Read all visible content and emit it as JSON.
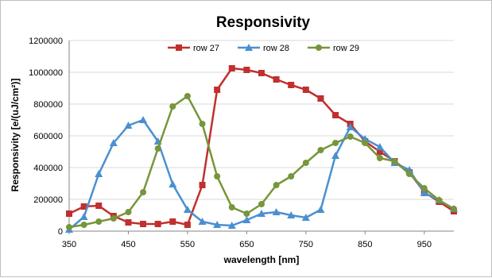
{
  "chart_data": {
    "type": "line",
    "title": "Responsivity",
    "xlabel": "wavelength [nm]",
    "ylabel": "Responsivity [e/(uJ/cm²)]",
    "xlim": [
      350,
      1000
    ],
    "ylim": [
      0,
      1200000
    ],
    "x_ticks": [
      350,
      450,
      550,
      650,
      750,
      850,
      950
    ],
    "y_ticks": [
      0,
      200000,
      400000,
      600000,
      800000,
      1000000,
      1200000
    ],
    "grid": true,
    "legend_position": "top",
    "x": [
      350,
      375,
      400,
      425,
      450,
      475,
      500,
      525,
      550,
      575,
      600,
      625,
      650,
      675,
      700,
      725,
      750,
      775,
      800,
      825,
      850,
      875,
      900,
      925,
      950,
      975,
      1000
    ],
    "series": [
      {
        "name": "row 27",
        "color": "#c0302e",
        "marker": "square",
        "values": [
          110000,
          155000,
          160000,
          95000,
          55000,
          45000,
          45000,
          60000,
          40000,
          290000,
          890000,
          1025000,
          1015000,
          995000,
          955000,
          920000,
          890000,
          835000,
          730000,
          675000,
          565000,
          500000,
          440000,
          370000,
          245000,
          185000,
          125000
        ]
      },
      {
        "name": "row 28",
        "color": "#4a90d0",
        "marker": "triangle",
        "values": [
          10000,
          90000,
          360000,
          555000,
          665000,
          700000,
          565000,
          295000,
          135000,
          60000,
          40000,
          35000,
          70000,
          110000,
          120000,
          100000,
          85000,
          135000,
          475000,
          655000,
          580000,
          530000,
          430000,
          385000,
          240000,
          195000,
          140000
        ]
      },
      {
        "name": "row 29",
        "color": "#76963b",
        "marker": "circle",
        "values": [
          25000,
          40000,
          60000,
          80000,
          120000,
          245000,
          520000,
          785000,
          850000,
          675000,
          345000,
          150000,
          110000,
          170000,
          290000,
          345000,
          430000,
          510000,
          555000,
          595000,
          555000,
          460000,
          440000,
          360000,
          270000,
          195000,
          140000
        ]
      }
    ]
  }
}
